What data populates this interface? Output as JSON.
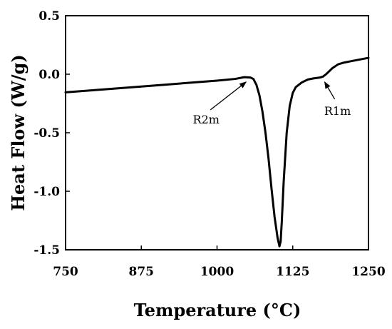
{
  "chart_data": {
    "type": "line",
    "title": "",
    "xlabel": "Temperature (°C)",
    "ylabel": "Heat Flow (W/g)",
    "xlim": [
      750,
      1250
    ],
    "ylim": [
      -1.5,
      0.5
    ],
    "x_ticks": [
      750,
      875,
      1000,
      1125,
      1250
    ],
    "x_tick_labels": [
      "750",
      "875",
      "1000",
      "1125",
      "1250"
    ],
    "y_ticks": [
      -1.5,
      -1.0,
      -0.5,
      0.0,
      0.5
    ],
    "y_tick_labels": [
      "-1.5",
      "-1.0",
      "-0.5",
      "0.0",
      "0.5"
    ],
    "grid": false,
    "legend": "none",
    "series": [
      {
        "color": "#000000",
        "x": [
          750,
          800,
          850,
          900,
          950,
          1000,
          1030,
          1045,
          1055,
          1060,
          1065,
          1070,
          1075,
          1080,
          1085,
          1090,
          1095,
          1100,
          1103,
          1105,
          1107,
          1110,
          1115,
          1120,
          1125,
          1130,
          1140,
          1150,
          1160,
          1170,
          1175,
          1180,
          1185,
          1190,
          1200,
          1210,
          1220,
          1230,
          1240,
          1250
        ],
        "y": [
          -0.155,
          -0.135,
          -0.115,
          -0.095,
          -0.075,
          -0.055,
          -0.04,
          -0.025,
          -0.028,
          -0.04,
          -0.09,
          -0.18,
          -0.32,
          -0.5,
          -0.72,
          -0.98,
          -1.22,
          -1.4,
          -1.47,
          -1.43,
          -1.25,
          -0.92,
          -0.5,
          -0.27,
          -0.16,
          -0.11,
          -0.07,
          -0.045,
          -0.035,
          -0.028,
          -0.02,
          0.0,
          0.025,
          0.05,
          0.085,
          0.1,
          0.11,
          0.12,
          0.13,
          0.14
        ]
      }
    ],
    "annotations": [
      {
        "text": "R2m",
        "x": 1055,
        "y": -0.03
      },
      {
        "text": "R1m",
        "x": 1173,
        "y": -0.03
      }
    ]
  }
}
